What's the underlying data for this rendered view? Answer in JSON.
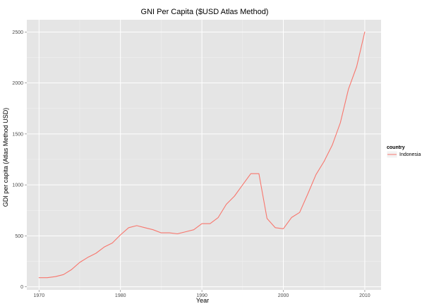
{
  "chart_data": {
    "type": "line",
    "title": "GNI Per Capita ($USD Atlas Method)",
    "xlabel": "Year",
    "ylabel": "GDI per capita (Atlas Method USD)",
    "xlim": [
      1968.5,
      2012
    ],
    "ylim": [
      -30,
      2620
    ],
    "x_ticks": [
      1970,
      1980,
      1990,
      2000,
      2010
    ],
    "y_ticks": [
      0,
      500,
      1000,
      1500,
      2000,
      2500
    ],
    "grid": true,
    "legend_position": "right",
    "legend_title": "country",
    "colors": {
      "panel_background": "#e5e5e5",
      "grid_major": "#ffffff",
      "grid_minor": "#f2f2f2",
      "series": "#f8766d"
    },
    "series": [
      {
        "name": "Indonesia",
        "x": [
          1970,
          1971,
          1972,
          1973,
          1974,
          1975,
          1976,
          1977,
          1978,
          1979,
          1980,
          1981,
          1982,
          1983,
          1984,
          1985,
          1986,
          1987,
          1988,
          1989,
          1990,
          1991,
          1992,
          1993,
          1994,
          1995,
          1996,
          1997,
          1998,
          1999,
          2000,
          2001,
          2002,
          2003,
          2004,
          2005,
          2006,
          2007,
          2008,
          2009,
          2010
        ],
        "values": [
          90,
          90,
          100,
          120,
          170,
          240,
          290,
          330,
          390,
          430,
          510,
          580,
          600,
          580,
          560,
          530,
          530,
          520,
          540,
          560,
          620,
          620,
          680,
          810,
          890,
          1000,
          1110,
          1110,
          670,
          580,
          570,
          680,
          730,
          910,
          1100,
          1230,
          1390,
          1610,
          1940,
          2160,
          2500
        ]
      }
    ]
  }
}
